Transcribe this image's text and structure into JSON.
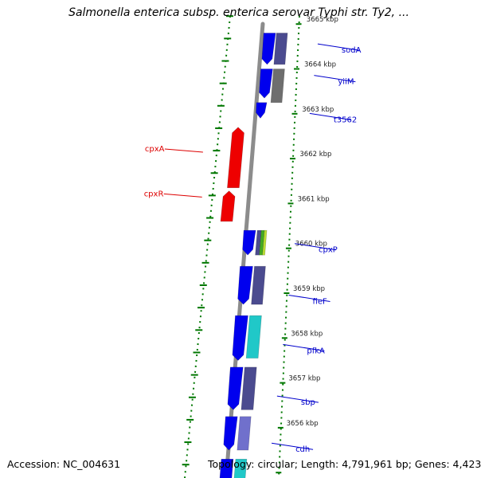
{
  "title": "Salmonella enterica subsp. enterica serovar Typhi str. Ty2, ...",
  "footer": {
    "accession": "Accession: NC_004631",
    "topology": "Topology: circular; Length: 4,791,961 bp; Genes: 4,423"
  },
  "colors": {
    "forward_gene": "#0000ee",
    "dark_slate": "#4b4b8f",
    "gray_gene": "#6e6e6e",
    "cyan_gene": "#20c8c8",
    "lavender_gene": "#7070cc",
    "reverse_gene": "#ee0000",
    "backbone": "#8c8c8c",
    "tick_green": "#007700",
    "fwd_label": "#0000cc",
    "rev_label": "#dd0000"
  },
  "scale_labels": [
    {
      "kbp": 3665,
      "text": "3665 kbp"
    },
    {
      "kbp": 3664,
      "text": "3664 kbp"
    },
    {
      "kbp": 3663,
      "text": "3663 kbp"
    },
    {
      "kbp": 3662,
      "text": "3662 kbp"
    },
    {
      "kbp": 3661,
      "text": "3661 kbp"
    },
    {
      "kbp": 3660,
      "text": "3660 kbp"
    },
    {
      "kbp": 3659,
      "text": "3659 kbp"
    },
    {
      "kbp": 3658,
      "text": "3658 kbp"
    },
    {
      "kbp": 3657,
      "text": "3657 kbp"
    },
    {
      "kbp": 3656,
      "text": "3656 kbp"
    }
  ],
  "forward_labels": [
    {
      "name": "sodA",
      "kbp": 3664.45
    },
    {
      "name": "yiiM",
      "kbp": 3663.75
    },
    {
      "name": "t3562",
      "kbp": 3662.9
    },
    {
      "name": "cpxP",
      "kbp": 3660.0
    },
    {
      "name": "fieF",
      "kbp": 3658.85
    },
    {
      "name": "pfkA",
      "kbp": 3657.75
    },
    {
      "name": "sbp",
      "kbp": 3656.6
    },
    {
      "name": "cdh",
      "kbp": 3655.55
    }
  ],
  "reverse_labels": [
    {
      "name": "cpxA",
      "kbp": 3662.25
    },
    {
      "name": "cpxR",
      "kbp": 3661.25
    }
  ]
}
